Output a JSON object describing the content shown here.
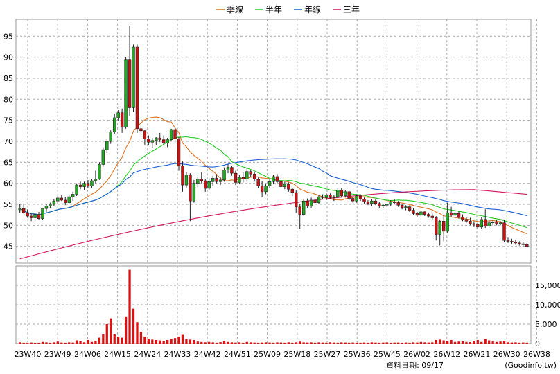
{
  "chart_data": {
    "type": "candlestick",
    "legend": [
      {
        "name": "季線",
        "color": "#e0701b"
      },
      {
        "name": "半年",
        "color": "#22cc22"
      },
      {
        "name": "年線",
        "color": "#1a5fd6"
      },
      {
        "name": "三年",
        "color": "#d11a5e"
      }
    ],
    "price_axis": {
      "ylim": [
        41,
        99
      ],
      "ticks": [
        45,
        50,
        55,
        60,
        65,
        70,
        75,
        80,
        85,
        90,
        95
      ]
    },
    "volume_axis": {
      "ylim": [
        0,
        20000
      ],
      "ticks": [
        0,
        5000,
        10000,
        15000
      ],
      "tick_labels": [
        "0",
        "5,000",
        "10,000",
        "15,000"
      ]
    },
    "x_tick_labels": [
      "23W40",
      "23W49",
      "24W06",
      "24W15",
      "24W24",
      "24W33",
      "24W42",
      "24W51",
      "25W09",
      "25W18",
      "25W27",
      "25W36",
      "25W45",
      "26W02",
      "26W12",
      "26W21",
      "26W30",
      "26W38"
    ],
    "grid": true,
    "up_color": "#22aa22",
    "down_color": "#cc1111",
    "candles": [
      {
        "o": 53.7,
        "h": 55.0,
        "l": 53.0,
        "c": 54.0
      },
      {
        "o": 54.0,
        "h": 55.2,
        "l": 52.8,
        "c": 53.0
      },
      {
        "o": 53.0,
        "h": 53.8,
        "l": 51.8,
        "c": 52.2
      },
      {
        "o": 52.2,
        "h": 53.0,
        "l": 51.0,
        "c": 51.8
      },
      {
        "o": 51.8,
        "h": 53.0,
        "l": 50.8,
        "c": 52.6
      },
      {
        "o": 52.6,
        "h": 53.2,
        "l": 51.4,
        "c": 51.6
      },
      {
        "o": 51.6,
        "h": 54.2,
        "l": 51.2,
        "c": 54.0
      },
      {
        "o": 54.0,
        "h": 55.0,
        "l": 53.2,
        "c": 54.6
      },
      {
        "o": 54.6,
        "h": 55.4,
        "l": 54.0,
        "c": 55.0
      },
      {
        "o": 55.0,
        "h": 56.2,
        "l": 54.6,
        "c": 55.8
      },
      {
        "o": 55.8,
        "h": 57.0,
        "l": 55.0,
        "c": 56.5
      },
      {
        "o": 56.5,
        "h": 57.2,
        "l": 55.8,
        "c": 56.0
      },
      {
        "o": 56.0,
        "h": 56.8,
        "l": 54.8,
        "c": 55.4
      },
      {
        "o": 55.4,
        "h": 57.2,
        "l": 55.0,
        "c": 56.8
      },
      {
        "o": 56.8,
        "h": 58.0,
        "l": 55.8,
        "c": 57.4
      },
      {
        "o": 57.4,
        "h": 60.0,
        "l": 57.0,
        "c": 59.6
      },
      {
        "o": 59.6,
        "h": 60.4,
        "l": 58.6,
        "c": 59.2
      },
      {
        "o": 59.2,
        "h": 60.4,
        "l": 58.4,
        "c": 60.0
      },
      {
        "o": 60.0,
        "h": 60.8,
        "l": 59.0,
        "c": 59.4
      },
      {
        "o": 59.4,
        "h": 61.0,
        "l": 58.8,
        "c": 60.6
      },
      {
        "o": 60.6,
        "h": 63.0,
        "l": 60.0,
        "c": 61.0
      },
      {
        "o": 61.0,
        "h": 65.0,
        "l": 60.8,
        "c": 64.5
      },
      {
        "o": 64.5,
        "h": 68.6,
        "l": 64.0,
        "c": 68.0
      },
      {
        "o": 68.0,
        "h": 70.6,
        "l": 67.2,
        "c": 70.0
      },
      {
        "o": 70.0,
        "h": 72.6,
        "l": 69.4,
        "c": 72.2
      },
      {
        "o": 72.2,
        "h": 76.6,
        "l": 71.8,
        "c": 75.6
      },
      {
        "o": 75.6,
        "h": 77.4,
        "l": 74.8,
        "c": 76.8
      },
      {
        "o": 76.8,
        "h": 77.8,
        "l": 72.0,
        "c": 73.4
      },
      {
        "o": 73.4,
        "h": 90.0,
        "l": 73.0,
        "c": 89.5
      },
      {
        "o": 89.5,
        "h": 97.5,
        "l": 76.0,
        "c": 78.0
      },
      {
        "o": 78.0,
        "h": 93.0,
        "l": 77.0,
        "c": 92.4
      },
      {
        "o": 92.4,
        "h": 93.0,
        "l": 72.0,
        "c": 73.0
      },
      {
        "o": 73.0,
        "h": 74.2,
        "l": 71.8,
        "c": 72.5
      },
      {
        "o": 72.5,
        "h": 72.8,
        "l": 69.2,
        "c": 70.6
      },
      {
        "o": 70.6,
        "h": 71.4,
        "l": 69.0,
        "c": 69.8
      },
      {
        "o": 69.8,
        "h": 70.8,
        "l": 68.4,
        "c": 70.2
      },
      {
        "o": 70.2,
        "h": 71.0,
        "l": 69.0,
        "c": 70.8
      },
      {
        "o": 70.8,
        "h": 72.0,
        "l": 69.8,
        "c": 70.4
      },
      {
        "o": 70.4,
        "h": 71.4,
        "l": 69.0,
        "c": 69.6
      },
      {
        "o": 69.6,
        "h": 70.8,
        "l": 68.6,
        "c": 70.4
      },
      {
        "o": 70.4,
        "h": 73.0,
        "l": 70.0,
        "c": 72.8
      },
      {
        "o": 72.8,
        "h": 74.0,
        "l": 69.6,
        "c": 70.6
      },
      {
        "o": 70.6,
        "h": 71.0,
        "l": 63.0,
        "c": 64.2
      },
      {
        "o": 64.2,
        "h": 65.2,
        "l": 58.0,
        "c": 59.6
      },
      {
        "o": 59.6,
        "h": 62.6,
        "l": 59.0,
        "c": 62.0
      },
      {
        "o": 62.0,
        "h": 62.4,
        "l": 51.0,
        "c": 55.8
      },
      {
        "o": 55.8,
        "h": 60.8,
        "l": 55.4,
        "c": 60.0
      },
      {
        "o": 60.0,
        "h": 61.6,
        "l": 59.0,
        "c": 61.0
      },
      {
        "o": 61.0,
        "h": 62.6,
        "l": 60.0,
        "c": 60.6
      },
      {
        "o": 60.6,
        "h": 61.0,
        "l": 58.0,
        "c": 58.8
      },
      {
        "o": 58.8,
        "h": 61.2,
        "l": 58.4,
        "c": 60.4
      },
      {
        "o": 60.4,
        "h": 61.8,
        "l": 59.4,
        "c": 61.2
      },
      {
        "o": 61.2,
        "h": 62.2,
        "l": 60.0,
        "c": 60.4
      },
      {
        "o": 60.4,
        "h": 61.4,
        "l": 59.6,
        "c": 60.8
      },
      {
        "o": 60.8,
        "h": 63.8,
        "l": 60.4,
        "c": 63.2
      },
      {
        "o": 63.2,
        "h": 64.6,
        "l": 62.4,
        "c": 63.8
      },
      {
        "o": 63.8,
        "h": 64.2,
        "l": 61.8,
        "c": 62.4
      },
      {
        "o": 62.4,
        "h": 63.0,
        "l": 59.6,
        "c": 60.2
      },
      {
        "o": 60.2,
        "h": 62.0,
        "l": 59.8,
        "c": 61.4
      },
      {
        "o": 61.4,
        "h": 62.6,
        "l": 60.2,
        "c": 61.0
      },
      {
        "o": 61.0,
        "h": 63.6,
        "l": 60.6,
        "c": 62.8
      },
      {
        "o": 62.8,
        "h": 63.2,
        "l": 61.6,
        "c": 62.2
      },
      {
        "o": 62.2,
        "h": 62.6,
        "l": 60.4,
        "c": 61.0
      },
      {
        "o": 61.0,
        "h": 61.4,
        "l": 58.8,
        "c": 59.4
      },
      {
        "o": 59.4,
        "h": 60.6,
        "l": 56.8,
        "c": 58.0
      },
      {
        "o": 58.0,
        "h": 60.0,
        "l": 57.4,
        "c": 59.4
      },
      {
        "o": 59.4,
        "h": 61.0,
        "l": 58.8,
        "c": 60.4
      },
      {
        "o": 60.4,
        "h": 62.0,
        "l": 59.8,
        "c": 61.6
      },
      {
        "o": 61.6,
        "h": 62.2,
        "l": 60.0,
        "c": 60.4
      },
      {
        "o": 60.4,
        "h": 60.8,
        "l": 58.8,
        "c": 59.2
      },
      {
        "o": 59.2,
        "h": 60.4,
        "l": 58.6,
        "c": 59.8
      },
      {
        "o": 59.8,
        "h": 60.2,
        "l": 58.0,
        "c": 58.6
      },
      {
        "o": 58.6,
        "h": 59.0,
        "l": 57.0,
        "c": 57.8
      },
      {
        "o": 57.8,
        "h": 58.4,
        "l": 53.0,
        "c": 54.4
      },
      {
        "o": 54.4,
        "h": 55.0,
        "l": 49.2,
        "c": 52.6
      },
      {
        "o": 52.6,
        "h": 56.2,
        "l": 52.2,
        "c": 55.8
      },
      {
        "o": 55.8,
        "h": 56.4,
        "l": 54.0,
        "c": 54.6
      },
      {
        "o": 54.6,
        "h": 56.6,
        "l": 54.2,
        "c": 56.0
      },
      {
        "o": 56.0,
        "h": 56.8,
        "l": 55.0,
        "c": 55.4
      },
      {
        "o": 55.4,
        "h": 57.2,
        "l": 55.0,
        "c": 56.8
      },
      {
        "o": 56.8,
        "h": 57.4,
        "l": 56.2,
        "c": 56.6
      },
      {
        "o": 56.6,
        "h": 57.6,
        "l": 56.0,
        "c": 57.2
      },
      {
        "o": 57.2,
        "h": 57.6,
        "l": 56.2,
        "c": 56.6
      },
      {
        "o": 56.6,
        "h": 57.2,
        "l": 55.8,
        "c": 56.8
      },
      {
        "o": 56.8,
        "h": 58.8,
        "l": 56.4,
        "c": 58.4
      },
      {
        "o": 58.4,
        "h": 58.8,
        "l": 56.6,
        "c": 57.0
      },
      {
        "o": 57.0,
        "h": 58.4,
        "l": 56.6,
        "c": 58.0
      },
      {
        "o": 58.0,
        "h": 58.2,
        "l": 56.0,
        "c": 56.4
      },
      {
        "o": 56.4,
        "h": 56.8,
        "l": 55.4,
        "c": 55.8
      },
      {
        "o": 55.8,
        "h": 57.4,
        "l": 55.4,
        "c": 57.0
      },
      {
        "o": 57.0,
        "h": 57.4,
        "l": 55.8,
        "c": 56.2
      },
      {
        "o": 56.2,
        "h": 56.6,
        "l": 55.0,
        "c": 55.6
      },
      {
        "o": 55.6,
        "h": 56.0,
        "l": 54.8,
        "c": 55.2
      },
      {
        "o": 55.2,
        "h": 56.2,
        "l": 54.6,
        "c": 55.8
      },
      {
        "o": 55.8,
        "h": 56.2,
        "l": 54.8,
        "c": 55.2
      },
      {
        "o": 55.2,
        "h": 55.6,
        "l": 54.2,
        "c": 54.6
      },
      {
        "o": 54.6,
        "h": 55.0,
        "l": 54.0,
        "c": 54.8
      },
      {
        "o": 54.8,
        "h": 55.2,
        "l": 54.4,
        "c": 55.0
      },
      {
        "o": 55.0,
        "h": 56.0,
        "l": 54.6,
        "c": 55.6
      },
      {
        "o": 55.6,
        "h": 56.2,
        "l": 55.0,
        "c": 55.4
      },
      {
        "o": 55.4,
        "h": 55.8,
        "l": 54.4,
        "c": 54.8
      },
      {
        "o": 54.8,
        "h": 55.2,
        "l": 53.8,
        "c": 54.2
      },
      {
        "o": 54.2,
        "h": 54.8,
        "l": 53.6,
        "c": 54.4
      },
      {
        "o": 54.4,
        "h": 54.8,
        "l": 53.2,
        "c": 53.6
      },
      {
        "o": 53.6,
        "h": 54.0,
        "l": 52.4,
        "c": 52.8
      },
      {
        "o": 52.8,
        "h": 53.2,
        "l": 52.0,
        "c": 52.4
      },
      {
        "o": 52.4,
        "h": 53.6,
        "l": 52.0,
        "c": 53.2
      },
      {
        "o": 53.2,
        "h": 53.4,
        "l": 52.2,
        "c": 52.6
      },
      {
        "o": 52.6,
        "h": 53.0,
        "l": 51.8,
        "c": 52.2
      },
      {
        "o": 52.2,
        "h": 52.8,
        "l": 51.2,
        "c": 51.8
      },
      {
        "o": 51.8,
        "h": 52.2,
        "l": 46.4,
        "c": 47.8
      },
      {
        "o": 47.8,
        "h": 51.4,
        "l": 45.2,
        "c": 51.0
      },
      {
        "o": 51.0,
        "h": 52.6,
        "l": 46.2,
        "c": 48.6
      },
      {
        "o": 48.6,
        "h": 55.4,
        "l": 48.2,
        "c": 53.0
      },
      {
        "o": 53.0,
        "h": 54.4,
        "l": 52.0,
        "c": 52.4
      },
      {
        "o": 52.4,
        "h": 53.2,
        "l": 51.6,
        "c": 52.8
      },
      {
        "o": 52.8,
        "h": 53.4,
        "l": 51.6,
        "c": 52.0
      },
      {
        "o": 52.0,
        "h": 52.6,
        "l": 51.0,
        "c": 51.4
      },
      {
        "o": 51.4,
        "h": 52.0,
        "l": 50.6,
        "c": 51.0
      },
      {
        "o": 51.0,
        "h": 51.8,
        "l": 50.0,
        "c": 50.4
      },
      {
        "o": 50.4,
        "h": 51.0,
        "l": 49.6,
        "c": 50.2
      },
      {
        "o": 50.2,
        "h": 50.8,
        "l": 49.2,
        "c": 49.6
      },
      {
        "o": 49.6,
        "h": 52.0,
        "l": 49.2,
        "c": 51.4
      },
      {
        "o": 51.4,
        "h": 53.8,
        "l": 49.4,
        "c": 49.8
      },
      {
        "o": 49.8,
        "h": 51.2,
        "l": 49.4,
        "c": 50.6
      },
      {
        "o": 50.6,
        "h": 51.2,
        "l": 50.0,
        "c": 50.8
      },
      {
        "o": 50.8,
        "h": 51.2,
        "l": 50.0,
        "c": 50.4
      },
      {
        "o": 50.4,
        "h": 51.0,
        "l": 50.0,
        "c": 50.6
      },
      {
        "o": 50.6,
        "h": 51.4,
        "l": 46.0,
        "c": 46.4
      },
      {
        "o": 46.4,
        "h": 47.2,
        "l": 45.8,
        "c": 46.2
      },
      {
        "o": 46.2,
        "h": 46.8,
        "l": 45.6,
        "c": 46.0
      },
      {
        "o": 46.0,
        "h": 46.6,
        "l": 45.4,
        "c": 45.8
      },
      {
        "o": 45.8,
        "h": 46.2,
        "l": 45.2,
        "c": 45.6
      },
      {
        "o": 45.6,
        "h": 46.0,
        "l": 45.0,
        "c": 45.4
      },
      {
        "o": 45.4,
        "h": 45.8,
        "l": 44.8,
        "c": 45.0
      }
    ],
    "volume": [
      300,
      200,
      150,
      250,
      180,
      200,
      400,
      300,
      200,
      300,
      500,
      250,
      200,
      300,
      250,
      800,
      600,
      300,
      900,
      400,
      700,
      1500,
      2500,
      5000,
      6500,
      2500,
      1800,
      1500,
      7000,
      19000,
      9000,
      5500,
      3000,
      1800,
      1200,
      1000,
      900,
      800,
      700,
      900,
      1200,
      1400,
      1800,
      2400,
      1200,
      1000,
      900,
      500,
      400,
      300,
      400,
      300,
      200,
      350,
      600,
      400,
      300,
      250,
      300,
      200,
      400,
      300,
      250,
      200,
      250,
      300,
      250,
      200,
      300,
      250,
      200,
      300,
      200,
      300,
      500,
      300,
      250,
      300,
      200,
      300,
      250,
      200,
      300,
      250,
      200,
      300,
      250,
      200,
      250,
      200,
      200,
      250,
      200,
      300,
      250,
      200,
      250,
      300,
      200,
      250,
      250,
      200,
      250,
      200,
      300,
      250,
      400,
      300,
      250,
      300,
      900,
      1000,
      800,
      600,
      900,
      400,
      500,
      600,
      400,
      350,
      600,
      900,
      400,
      1200,
      800,
      600,
      400,
      500,
      700,
      300,
      250,
      300,
      200,
      250,
      200
    ]
  },
  "footer": {
    "date_label": "資料日期: 09/17",
    "source_label": "(Goodinfo.tw)"
  }
}
